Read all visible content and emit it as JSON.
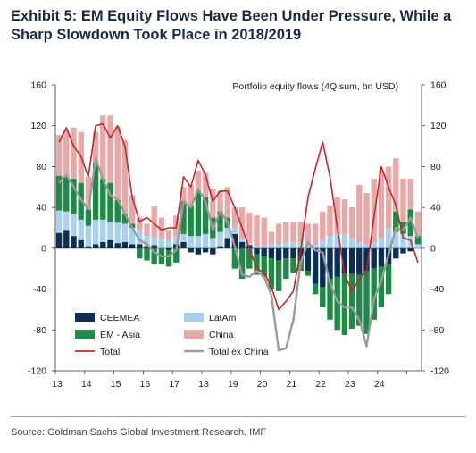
{
  "title_line1": "Exhibit 5: EM Equity Flows Have Been Under Pressure, While a",
  "title_line2": "Sharp Slowdown Took Place in 2018/2019",
  "source": "Source: Goldman Sachs Global Investment Research, IMF",
  "colors": {
    "ceemea": "#0b2e55",
    "latam": "#a8d1ef",
    "emasia": "#1d8a46",
    "china": "#e8a8a8",
    "total": "#c4262b",
    "total_ex_china": "#9b9b9b"
  },
  "chart_data": {
    "type": "bar",
    "annotation": "Portfolio equity flows (4Q sum, bn USD)",
    "ylim": [
      -120,
      160
    ],
    "yticks": [
      -120,
      -80,
      -40,
      0,
      40,
      80,
      120,
      160
    ],
    "y2ticks": [
      -120,
      -80,
      -40,
      0,
      40,
      80,
      120,
      160
    ],
    "xticks": [
      "13",
      "14",
      "15",
      "16",
      "17",
      "18",
      "19",
      "20",
      "21",
      "22",
      "23",
      "24"
    ],
    "x_start_year": 2013,
    "legend": [
      "CEEMEA",
      "LatAm",
      "EM - Asia",
      "China",
      "Total",
      "Total ex China"
    ],
    "series": [
      {
        "name": "CEEMEA",
        "kind": "bar",
        "values": [
          15,
          18,
          12,
          8,
          2,
          4,
          6,
          8,
          5,
          6,
          4,
          4,
          2,
          3,
          0,
          -2,
          4,
          6,
          -4,
          -6,
          -4,
          -6,
          2,
          10,
          14,
          6,
          3,
          -6,
          -8,
          -10,
          -12,
          -10,
          -10,
          -12,
          -22,
          -35,
          -38,
          -30,
          -28,
          -25,
          -25,
          -26,
          -22,
          -20,
          -18,
          -15,
          -10,
          -5,
          -3,
          0
        ]
      },
      {
        "name": "LatAm",
        "kind": "bar",
        "values": [
          22,
          18,
          22,
          20,
          20,
          24,
          22,
          18,
          20,
          18,
          16,
          14,
          10,
          8,
          10,
          8,
          8,
          8,
          12,
          12,
          14,
          10,
          14,
          10,
          6,
          4,
          2,
          2,
          2,
          4,
          4,
          6,
          6,
          6,
          4,
          4,
          8,
          12,
          14,
          14,
          10,
          6,
          4,
          6,
          10,
          20,
          16,
          14,
          12,
          4
        ]
      },
      {
        "name": "EM - Asia",
        "kind": "bar",
        "values": [
          34,
          34,
          34,
          36,
          16,
          56,
          40,
          38,
          22,
          10,
          4,
          -10,
          -12,
          -16,
          -16,
          -16,
          -14,
          32,
          30,
          44,
          36,
          20,
          20,
          10,
          -20,
          -30,
          -20,
          -20,
          -20,
          -30,
          -30,
          -20,
          -14,
          -10,
          -5,
          -10,
          -20,
          -40,
          -52,
          -60,
          -54,
          -50,
          -62,
          -50,
          -40,
          -30,
          20,
          12,
          26,
          8
        ]
      },
      {
        "name": "China",
        "kind": "bar",
        "values": [
          40,
          46,
          50,
          50,
          32,
          30,
          62,
          66,
          72,
          72,
          28,
          12,
          12,
          30,
          20,
          10,
          20,
          14,
          20,
          20,
          24,
          28,
          20,
          30,
          20,
          30,
          30,
          30,
          28,
          12,
          20,
          20,
          20,
          20,
          20,
          20,
          28,
          30,
          36,
          34,
          30,
          56,
          50,
          62,
          66,
          60,
          52,
          42,
          30,
          24
        ]
      },
      {
        "name": "Total",
        "kind": "line",
        "values": [
          104,
          118,
          100,
          90,
          70,
          120,
          122,
          108,
          120,
          100,
          50,
          26,
          30,
          24,
          18,
          20,
          20,
          70,
          60,
          86,
          72,
          46,
          56,
          56,
          40,
          20,
          0,
          -20,
          -24,
          -38,
          -60,
          -52,
          -42,
          -2,
          50,
          78,
          104,
          70,
          20,
          -26,
          -42,
          -30,
          -22,
          30,
          80,
          60,
          42,
          10,
          8,
          -14
        ]
      },
      {
        "name": "Total ex China",
        "kind": "line",
        "values": [
          64,
          72,
          60,
          48,
          38,
          88,
          68,
          52,
          48,
          34,
          20,
          8,
          4,
          -4,
          -8,
          -8,
          -2,
          46,
          40,
          58,
          46,
          18,
          36,
          26,
          2,
          -26,
          -28,
          -22,
          -28,
          -46,
          -100,
          -98,
          -70,
          -14,
          6,
          -2,
          -4,
          -34,
          -52,
          -58,
          -58,
          -70,
          -96,
          -50,
          -32,
          -6,
          20,
          18,
          30,
          10
        ]
      }
    ]
  }
}
